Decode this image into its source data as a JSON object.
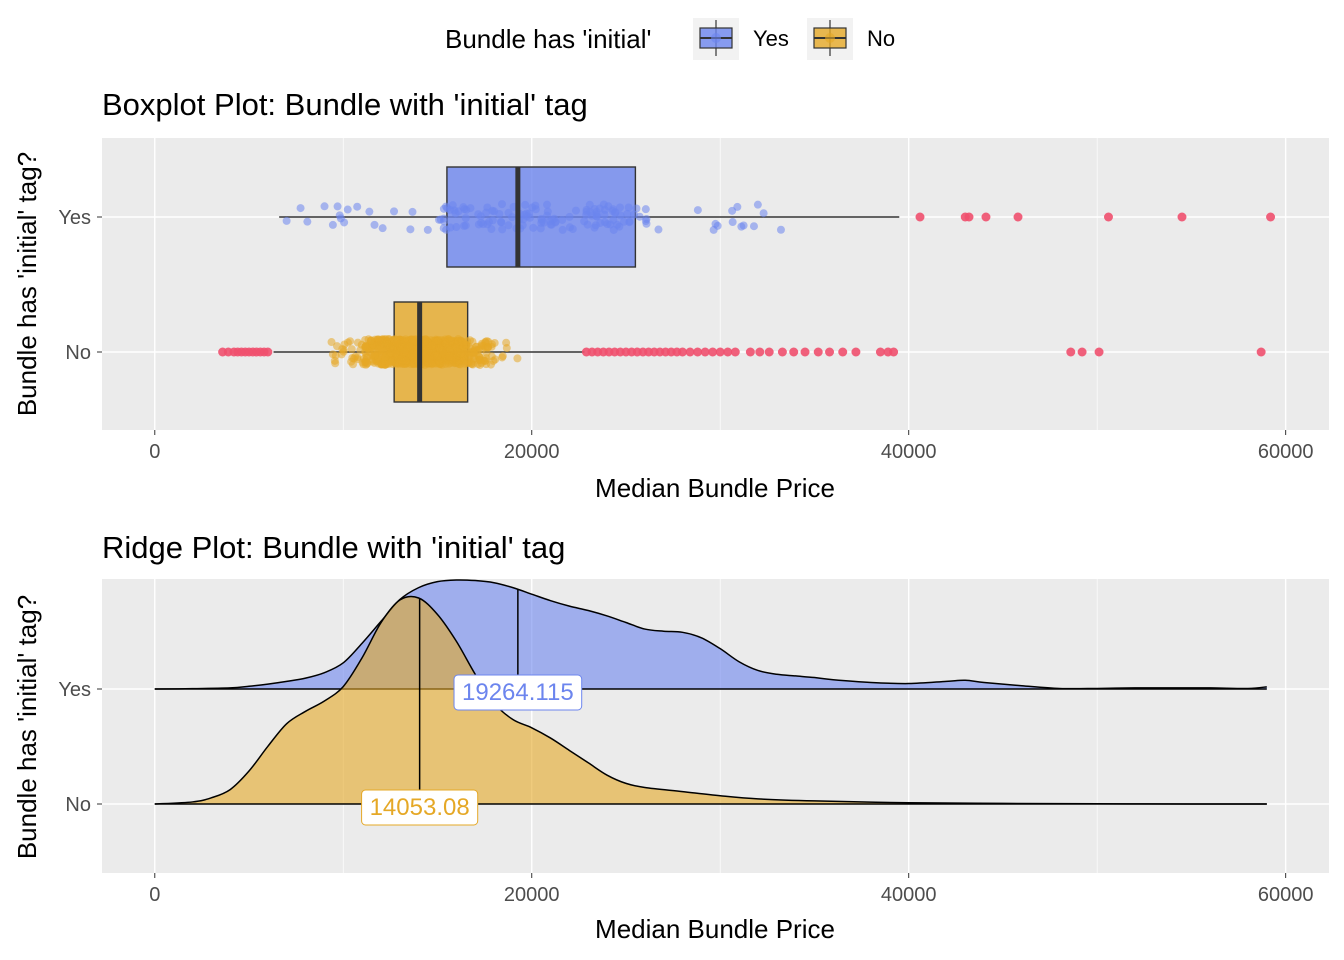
{
  "legend": {
    "title": "Bundle has 'initial'",
    "items": [
      {
        "label": "Yes",
        "color": "#6C85EE"
      },
      {
        "label": "No",
        "color": "#E5A826"
      }
    ]
  },
  "chart_data": [
    {
      "type": "boxplot",
      "title": "Boxplot Plot: Bundle with 'initial' tag",
      "xlabel": "Median Bundle Price",
      "ylabel": "Bundle has 'initial' tag?",
      "xlim": [
        -2800,
        62300
      ],
      "x_ticks": [
        0,
        20000,
        40000,
        60000
      ],
      "categories": [
        "Yes",
        "No"
      ],
      "grid": true,
      "outlier_color": "#F0506E",
      "series": [
        {
          "name": "Yes",
          "color": "#6C85EE",
          "q1": 15500,
          "median": 19264.115,
          "q3": 25500,
          "whisker_low": 6600,
          "whisker_high": 39500,
          "jitter_range": [
            6600,
            34500
          ],
          "jitter_count": 160,
          "outliers": [
            40600,
            43000,
            43200,
            44100,
            45800,
            50600,
            54500,
            59200
          ]
        },
        {
          "name": "No",
          "color": "#E5A826",
          "q1": 12700,
          "median": 14053.08,
          "q3": 16600,
          "whisker_low": 6300,
          "whisker_high": 22800,
          "jitter_range": [
            7900,
            20200
          ],
          "jitter_count": 800,
          "outliers": [
            3600,
            3900,
            4200,
            4400,
            4600,
            4800,
            5000,
            5200,
            5400,
            5600,
            5800,
            6000,
            22900,
            23200,
            23500,
            23800,
            24100,
            24400,
            24700,
            25000,
            25300,
            25600,
            25900,
            26200,
            26500,
            26800,
            27100,
            27400,
            27700,
            28000,
            28400,
            28800,
            29200,
            29600,
            30000,
            30400,
            30800,
            31600,
            32100,
            32600,
            33300,
            33900,
            34500,
            35200,
            35800,
            36500,
            37200,
            38500,
            38900,
            39200,
            48600,
            49200,
            50100,
            58700
          ]
        }
      ]
    },
    {
      "type": "ridge",
      "title": "Ridge Plot: Bundle with 'initial' tag",
      "xlabel": "Median Bundle Price",
      "ylabel": "Bundle has 'initial' tag?",
      "xlim": [
        -2800,
        62300
      ],
      "x_ticks": [
        0,
        20000,
        40000,
        60000
      ],
      "categories": [
        "Yes",
        "No"
      ],
      "grid": true,
      "series": [
        {
          "name": "Yes",
          "color": "#6C85EE",
          "median_label": "19264.115",
          "median": 19264.115,
          "x": [
            0,
            2000,
            4000,
            5000,
            6000,
            7000,
            8000,
            9000,
            10000,
            11000,
            12000,
            13000,
            14000,
            15000,
            16000,
            17000,
            18000,
            19000,
            20000,
            21000,
            22000,
            23000,
            24000,
            25000,
            26000,
            27000,
            28000,
            29000,
            30000,
            31000,
            32000,
            33000,
            34000,
            35000,
            36000,
            38000,
            40000,
            42000,
            43000,
            44000,
            46000,
            48000,
            50000,
            52000,
            54000,
            56000,
            58000,
            59000
          ],
          "density": [
            0.0,
            0.003,
            0.01,
            0.025,
            0.045,
            0.07,
            0.1,
            0.15,
            0.24,
            0.42,
            0.62,
            0.82,
            0.93,
            0.985,
            1.0,
            0.995,
            0.975,
            0.93,
            0.87,
            0.81,
            0.76,
            0.72,
            0.67,
            0.61,
            0.55,
            0.53,
            0.52,
            0.47,
            0.37,
            0.25,
            0.17,
            0.135,
            0.12,
            0.105,
            0.085,
            0.06,
            0.05,
            0.07,
            0.08,
            0.06,
            0.03,
            0.005,
            0.005,
            0.01,
            0.01,
            0.01,
            0.005,
            0.02
          ]
        },
        {
          "name": "No",
          "color": "#E5A826",
          "median_label": "14053.08",
          "median": 14053.08,
          "x": [
            0,
            2000,
            3000,
            4000,
            5000,
            6000,
            7000,
            8000,
            9000,
            10000,
            11000,
            12000,
            13000,
            14000,
            15000,
            16000,
            17000,
            18000,
            19000,
            20000,
            21000,
            22000,
            23000,
            24000,
            25000,
            26000,
            28000,
            30000,
            32000,
            35000,
            40000,
            45000,
            50000,
            55000,
            59000
          ],
          "density": [
            0.0,
            0.01,
            0.03,
            0.07,
            0.16,
            0.28,
            0.39,
            0.45,
            0.5,
            0.57,
            0.71,
            0.88,
            0.99,
            1.0,
            0.92,
            0.79,
            0.63,
            0.49,
            0.41,
            0.37,
            0.32,
            0.26,
            0.2,
            0.14,
            0.1,
            0.08,
            0.06,
            0.04,
            0.025,
            0.015,
            0.006,
            0.003,
            0.001,
            0.0,
            0.0
          ]
        }
      ]
    }
  ]
}
